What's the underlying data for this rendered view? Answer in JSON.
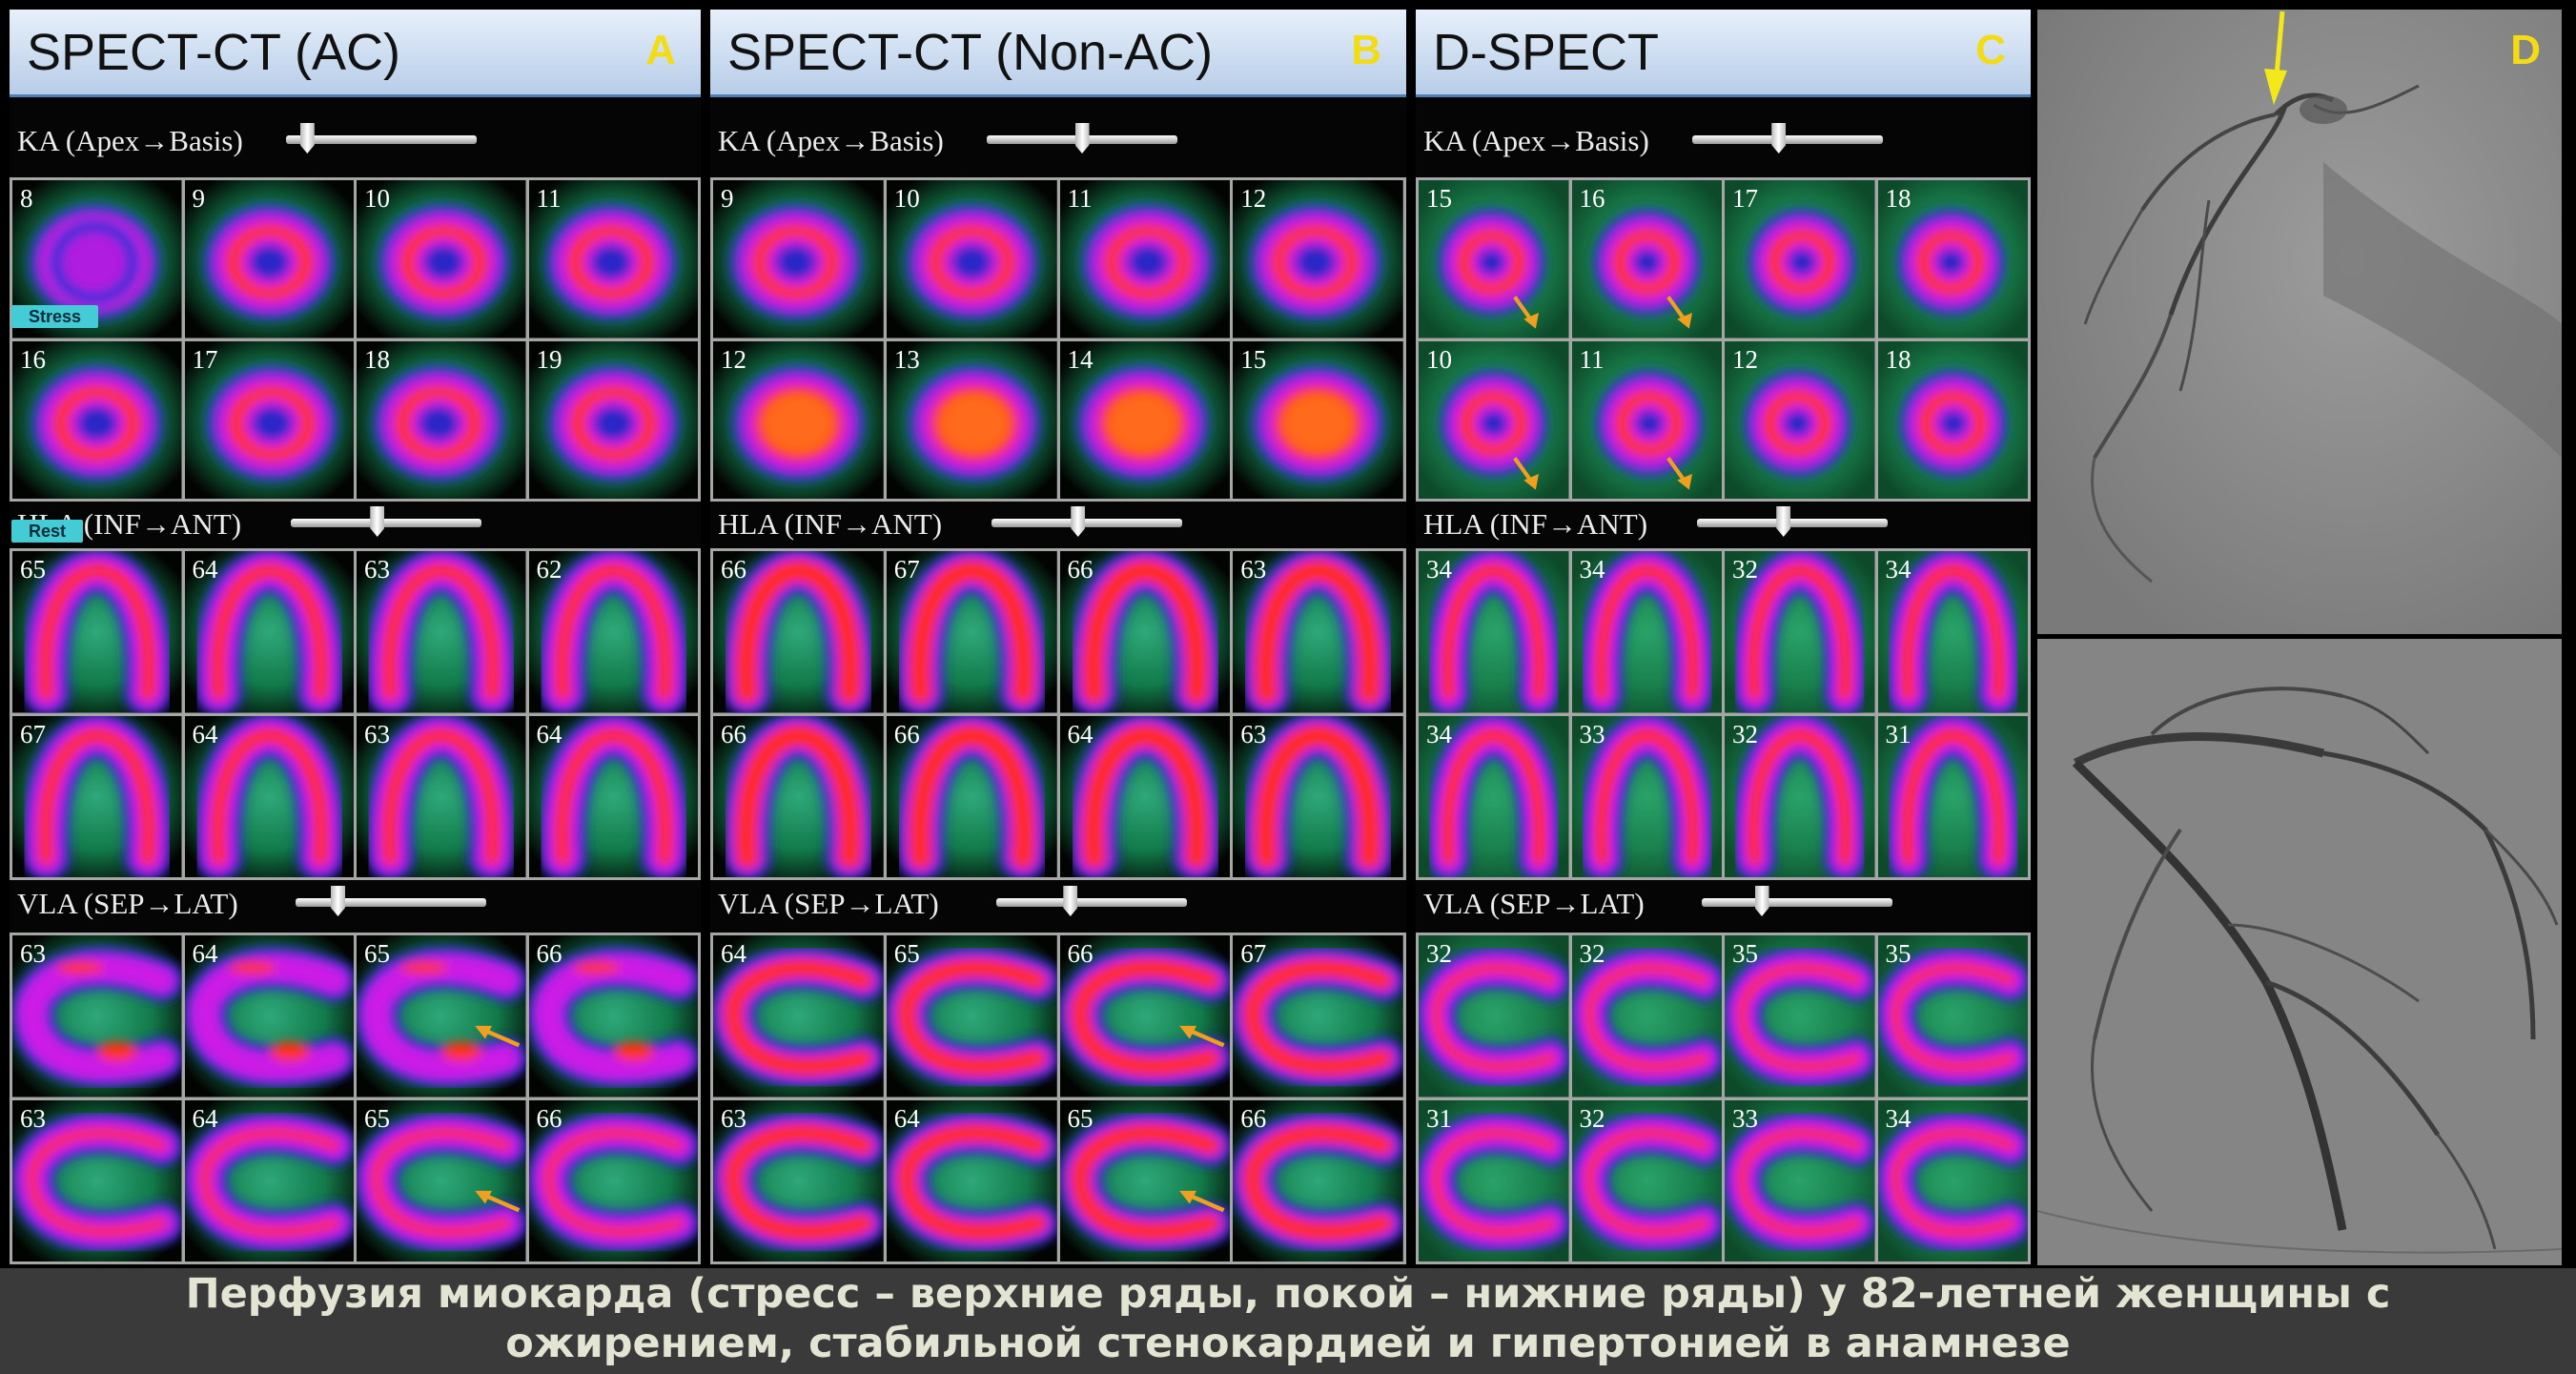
{
  "panels": [
    {
      "title": "SPECT-CT (AC)",
      "letter": "A",
      "sections": [
        {
          "label": "KA (Apex→Basis)",
          "view": "ka",
          "numbers": [
            "8",
            "9",
            "10",
            "11",
            "16",
            "17",
            "18",
            "19"
          ]
        },
        {
          "label": "HLA (INF→ANT)",
          "view": "hla",
          "numbers": [
            "65",
            "64",
            "63",
            "62",
            "67",
            "64",
            "63",
            "64"
          ]
        },
        {
          "label": "VLA (SEP→LAT)",
          "view": "vla",
          "numbers": [
            "63",
            "64",
            "65",
            "66",
            "63",
            "64",
            "65",
            "66"
          ]
        }
      ]
    },
    {
      "title": "SPECT-CT (Non-AC)",
      "letter": "B",
      "sections": [
        {
          "label": "KA (Apex→Basis)",
          "view": "ka",
          "numbers": [
            "9",
            "10",
            "11",
            "12",
            "12",
            "13",
            "14",
            "15"
          ]
        },
        {
          "label": "HLA (INF→ANT)",
          "view": "hla",
          "numbers": [
            "66",
            "67",
            "66",
            "63",
            "66",
            "66",
            "64",
            "63"
          ]
        },
        {
          "label": "VLA (SEP→LAT)",
          "view": "vla",
          "numbers": [
            "64",
            "65",
            "66",
            "67",
            "63",
            "64",
            "65",
            "66"
          ]
        }
      ]
    },
    {
      "title": "D-SPECT",
      "letter": "C",
      "sections": [
        {
          "label": "KA (Apex→Basis)",
          "view": "ka",
          "numbers": [
            "15",
            "16",
            "17",
            "18",
            "10",
            "11",
            "12",
            "18"
          ]
        },
        {
          "label": "HLA (INF→ANT)",
          "view": "hla",
          "numbers": [
            "34",
            "34",
            "32",
            "34",
            "34",
            "33",
            "32",
            "31"
          ]
        },
        {
          "label": "VLA (SEP→LAT)",
          "view": "vla",
          "numbers": [
            "32",
            "32",
            "35",
            "35",
            "31",
            "32",
            "33",
            "34"
          ]
        }
      ]
    }
  ],
  "angio": {
    "letter": "D"
  },
  "tags": {
    "stress": "Stress",
    "rest": "Rest"
  },
  "caption": {
    "line1": "Перфузия миокарда (стресс – верхние ряды, покой – нижние ряды) у 82-летней женщины с",
    "line2": "ожирением, стабильной стенокардией и гипертонией в анамнезе"
  },
  "colors": {
    "header_letter": "#f3dc16",
    "arrow_orange": "#f0a020",
    "arrow_yellow": "#f2e81a",
    "perfusion_high": "#ff2a12",
    "perfusion_mid": "#e01ee8",
    "perfusion_low": "#2a1ad8",
    "background_glow": "#1c8c5a"
  }
}
